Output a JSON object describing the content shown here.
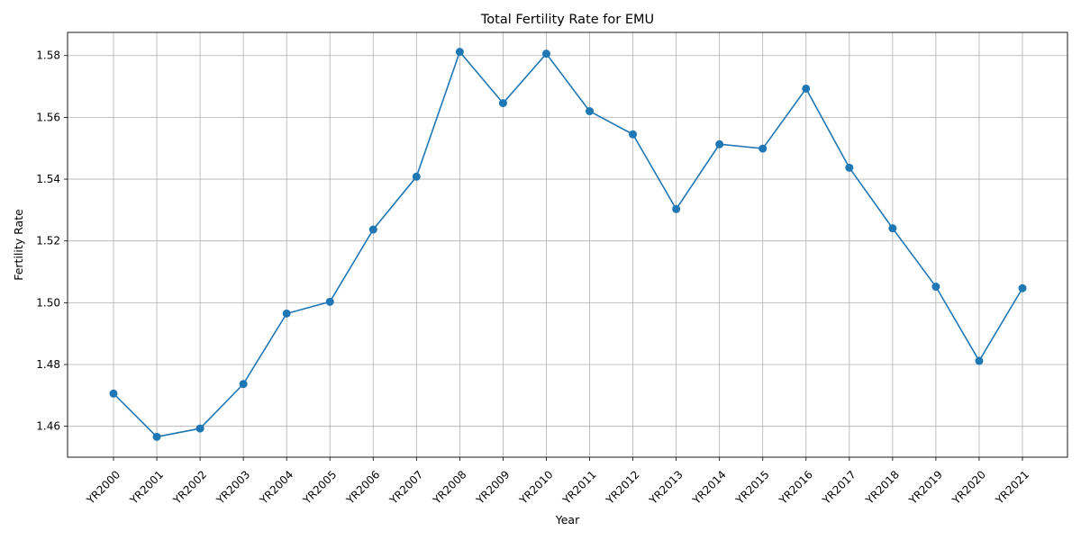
{
  "chart_data": {
    "type": "line",
    "title": "Total Fertility Rate for EMU",
    "xlabel": "Year",
    "ylabel": "Fertility Rate",
    "categories": [
      "YR2000",
      "YR2001",
      "YR2002",
      "YR2003",
      "YR2004",
      "YR2005",
      "YR2006",
      "YR2007",
      "YR2008",
      "YR2009",
      "YR2010",
      "YR2011",
      "YR2012",
      "YR2013",
      "YR2014",
      "YR2015",
      "YR2016",
      "YR2017",
      "YR2018",
      "YR2019",
      "YR2020",
      "YR2021"
    ],
    "series": [
      {
        "values": [
          1.4706,
          1.4566,
          1.4593,
          1.4737,
          1.4965,
          1.5003,
          1.5237,
          1.5408,
          1.5812,
          1.5646,
          1.5806,
          1.562,
          1.5545,
          1.5303,
          1.5513,
          1.5499,
          1.5693,
          1.5437,
          1.5241,
          1.5052,
          1.4812,
          1.5047
        ],
        "color": "#1f77b4",
        "marker": "circle"
      }
    ],
    "yticks": [
      "1.46",
      "1.48",
      "1.50",
      "1.52",
      "1.54",
      "1.56",
      "1.58"
    ],
    "ylim": [
      1.45,
      1.5875
    ],
    "grid": true,
    "xtick_rotation": 45
  }
}
